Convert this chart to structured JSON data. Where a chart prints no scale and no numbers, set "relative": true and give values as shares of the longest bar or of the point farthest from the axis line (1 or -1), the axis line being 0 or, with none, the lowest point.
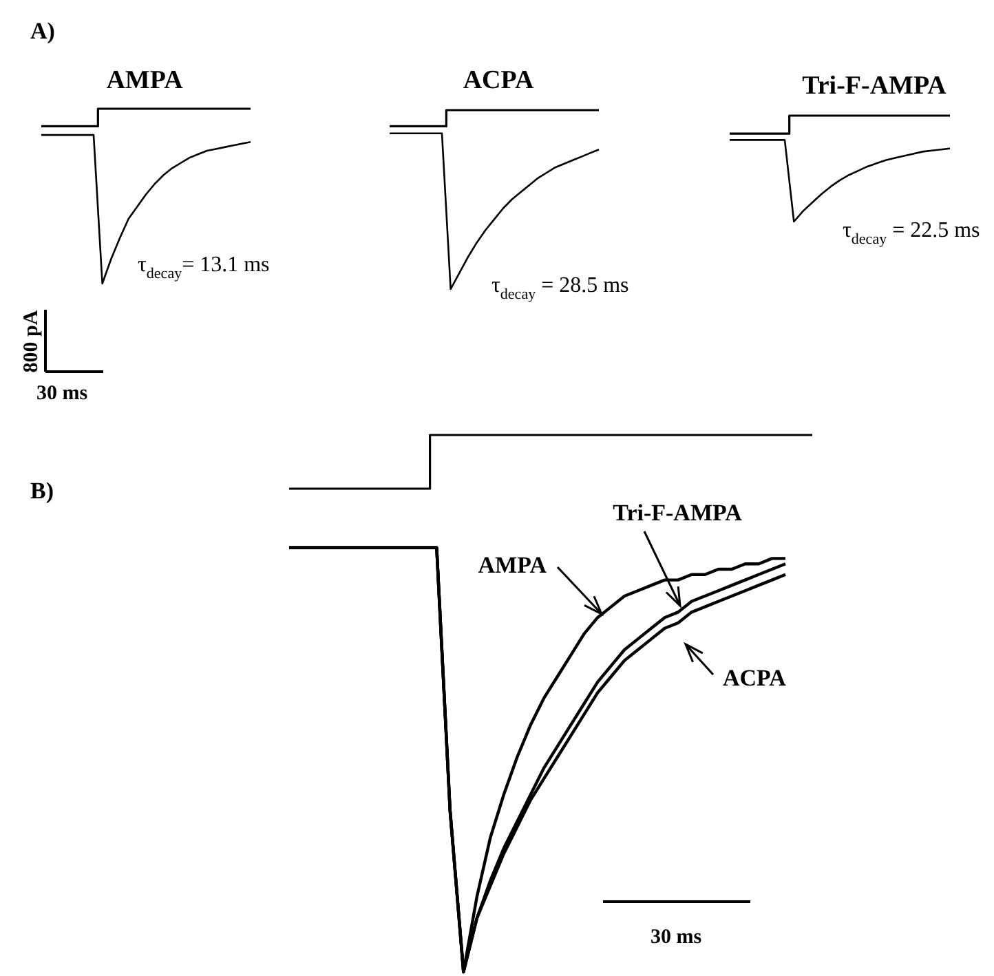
{
  "chart_data": [
    {
      "type": "line",
      "title": "AMPA",
      "relative": true,
      "marker": "none",
      "legend": false,
      "categories": [
        null,
        null,
        null,
        null,
        null,
        null,
        null,
        null,
        null,
        null,
        null,
        null,
        null,
        null,
        null,
        null,
        null,
        null,
        null,
        null,
        null,
        null,
        null,
        null,
        null
      ],
      "series": [
        {
          "type": "step",
          "color": "#000000",
          "values": [
            0.9,
            0.9,
            0.9,
            0.9,
            0.9,
            0.9,
            0.9,
            1,
            1,
            1,
            1,
            1,
            1,
            1,
            1,
            1,
            1,
            1,
            1,
            1,
            1,
            1,
            1,
            1,
            1
          ]
        },
        {
          "color": "#000000",
          "values": [
            0.85,
            0.85,
            0.85,
            0.85,
            0.85,
            0.85,
            0.85,
            0,
            0.14,
            0.26,
            0.37,
            0.44,
            0.51,
            0.57,
            0.62,
            0.66,
            0.69,
            0.72,
            0.74,
            0.76,
            0.77,
            0.78,
            0.79,
            0.8,
            0.81
          ]
        }
      ],
      "annotations": [
        "A)",
        "τ$_{decay}$= 13.1 ms",
        "800 pA",
        "30 ms"
      ]
    },
    {
      "type": "line",
      "title": "ACPA",
      "relative": true,
      "marker": "none",
      "legend": false,
      "categories": [
        null,
        null,
        null,
        null,
        null,
        null,
        null,
        null,
        null,
        null,
        null,
        null,
        null,
        null,
        null,
        null,
        null,
        null,
        null,
        null,
        null,
        null,
        null,
        null,
        null
      ],
      "series": [
        {
          "type": "step",
          "color": "#000000",
          "values": [
            0.91,
            0.91,
            0.91,
            0.91,
            0.91,
            0.91,
            0.91,
            1,
            1,
            1,
            1,
            1,
            1,
            1,
            1,
            1,
            1,
            1,
            1,
            1,
            1,
            1,
            1,
            1,
            1
          ]
        },
        {
          "color": "#000000",
          "values": [
            0.87,
            0.87,
            0.87,
            0.87,
            0.87,
            0.87,
            0.87,
            0,
            0.09,
            0.18,
            0.26,
            0.33,
            0.39,
            0.45,
            0.5,
            0.54,
            0.58,
            0.62,
            0.65,
            0.68,
            0.7,
            0.72,
            0.74,
            0.76,
            0.78
          ]
        }
      ],
      "annotations": [
        "τ$_{decay}$ = 28.5 ms"
      ]
    },
    {
      "type": "line",
      "title": "Tri-F-AMPA",
      "relative": true,
      "marker": "none",
      "legend": false,
      "categories": [
        null,
        null,
        null,
        null,
        null,
        null,
        null,
        null,
        null,
        null,
        null,
        null,
        null,
        null,
        null,
        null,
        null,
        null,
        null,
        null,
        null,
        null,
        null,
        null,
        null
      ],
      "series": [
        {
          "type": "step",
          "color": "#000000",
          "values": [
            0.83,
            0.83,
            0.83,
            0.83,
            0.83,
            0.83,
            0.83,
            1,
            1,
            1,
            1,
            1,
            1,
            1,
            1,
            1,
            1,
            1,
            1,
            1,
            1,
            1,
            1,
            1,
            1
          ]
        },
        {
          "color": "#000000",
          "values": [
            0.77,
            0.77,
            0.77,
            0.77,
            0.77,
            0.77,
            0.77,
            0,
            0.1,
            0.18,
            0.26,
            0.33,
            0.39,
            0.44,
            0.48,
            0.52,
            0.55,
            0.58,
            0.6,
            0.62,
            0.64,
            0.66,
            0.67,
            0.68,
            0.69
          ]
        }
      ],
      "annotations": [
        "τ$_{decay}$ = 22.5 ms"
      ]
    },
    {
      "type": "line",
      "relative": true,
      "marker": "none",
      "legend": false,
      "categories": [
        null,
        null,
        null,
        null,
        null,
        null,
        null,
        null,
        null,
        null,
        null,
        null,
        null,
        null,
        null,
        null,
        null,
        null,
        null,
        null,
        null,
        null,
        null,
        null,
        null,
        null,
        null,
        null,
        null,
        null,
        null,
        null,
        null,
        null,
        null,
        null,
        null,
        null,
        null,
        null
      ],
      "series": [
        {
          "type": "step",
          "color": "#000000",
          "values": [
            0.9,
            0.9,
            0.9,
            0.9,
            0.9,
            0.9,
            0.9,
            0.9,
            0.9,
            0.9,
            0.9,
            1,
            1,
            1,
            1,
            1,
            1,
            1,
            1,
            1,
            1,
            1,
            1,
            1,
            1,
            1,
            1,
            1,
            1,
            1,
            1,
            1,
            1,
            1,
            1,
            1,
            1,
            1,
            1,
            1
          ]
        },
        {
          "name": "AMPA",
          "color": "#000000",
          "values": [
            0.79,
            0.79,
            0.79,
            0.79,
            0.79,
            0.79,
            0.79,
            0.79,
            0.79,
            0.79,
            0.79,
            0.79,
            0.3,
            0,
            0.14,
            0.25,
            0.33,
            0.4,
            0.46,
            0.51,
            0.55,
            0.59,
            0.63,
            0.66,
            0.68,
            0.7,
            0.71,
            0.72,
            0.73,
            0.73,
            0.74,
            0.74,
            0.75,
            0.75,
            0.76,
            0.76,
            0.77,
            0.77,
            null,
            null
          ]
        },
        {
          "name": "Tri-F-AMPA",
          "color": "#000000",
          "values": [
            0.79,
            0.79,
            0.79,
            0.79,
            0.79,
            0.79,
            0.79,
            0.79,
            0.79,
            0.79,
            0.79,
            0.79,
            0.3,
            0,
            0.1,
            0.17,
            0.23,
            0.28,
            0.33,
            0.38,
            0.42,
            0.46,
            0.5,
            0.54,
            0.57,
            0.6,
            0.62,
            0.64,
            0.66,
            0.67,
            0.69,
            0.7,
            0.71,
            0.72,
            0.73,
            0.74,
            0.75,
            0.76,
            null,
            null
          ]
        },
        {
          "name": "ACPA",
          "color": "#000000",
          "values": [
            0.79,
            0.79,
            0.79,
            0.79,
            0.79,
            0.79,
            0.79,
            0.79,
            0.79,
            0.79,
            0.79,
            0.79,
            0.3,
            0,
            0.1,
            0.16,
            0.22,
            0.27,
            0.32,
            0.36,
            0.4,
            0.44,
            0.48,
            0.52,
            0.55,
            0.58,
            0.6,
            0.62,
            0.64,
            0.65,
            0.67,
            0.68,
            0.69,
            0.7,
            0.71,
            0.72,
            0.73,
            0.74,
            null,
            null
          ]
        }
      ],
      "annotations": [
        "B)",
        "30 ms"
      ]
    }
  ]
}
